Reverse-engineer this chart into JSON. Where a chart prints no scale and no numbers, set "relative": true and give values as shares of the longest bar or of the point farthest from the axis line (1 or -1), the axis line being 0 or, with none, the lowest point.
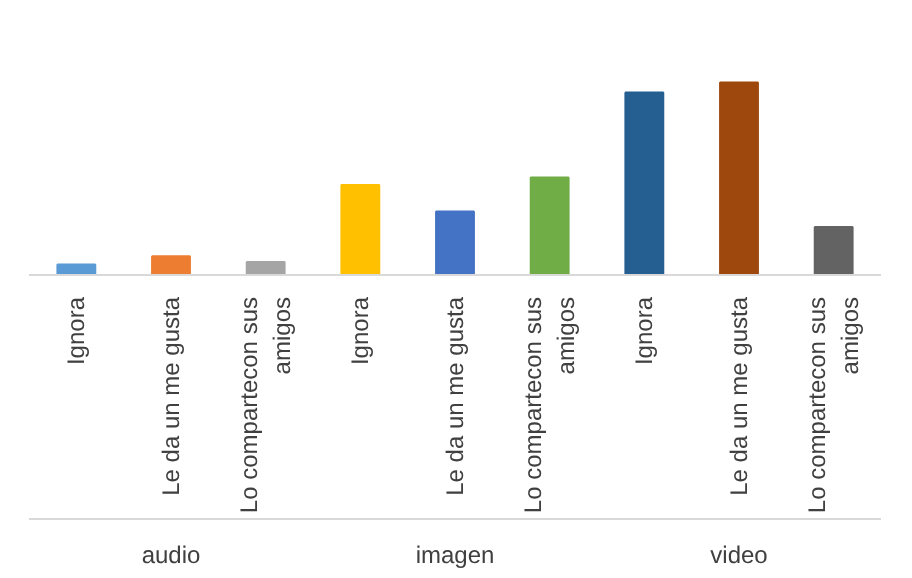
{
  "chart_data": {
    "type": "bar",
    "relative": true,
    "categories": [
      "Ignora",
      "Le da un me gusta",
      "Lo compartecon sus amigos",
      "Ignora",
      "Le da un me gusta",
      "Lo compartecon sus amigos",
      "Ignora",
      "Le da un me gusta",
      "Lo compartecon sus amigos"
    ],
    "values": [
      0.055,
      0.098,
      0.067,
      0.468,
      0.33,
      0.507,
      0.948,
      1,
      0.25
    ],
    "colors": [
      "#5b9bd5",
      "#ed7d31",
      "#a5a5a5",
      "#ffc000",
      "#4472c4",
      "#70ad47",
      "#255e91",
      "#9e480e",
      "#636363"
    ],
    "annotations": [
      "audio",
      "imagen",
      "video"
    ]
  }
}
